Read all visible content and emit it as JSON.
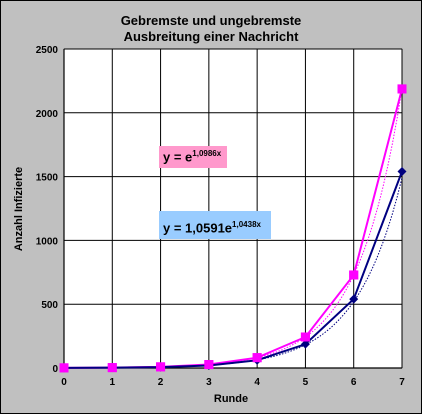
{
  "chart_data": {
    "type": "line",
    "title_lines": [
      "Gebremste und ungebremste",
      "Ausbreitung einer Nachricht"
    ],
    "xlabel": "Runde",
    "ylabel": "Anzahl Infizierte",
    "x": [
      0,
      1,
      2,
      3,
      4,
      5,
      6,
      7
    ],
    "xlim": [
      0,
      7
    ],
    "ylim": [
      0,
      2500
    ],
    "y_ticks": [
      0,
      500,
      1000,
      1500,
      2000,
      2500
    ],
    "x_ticks": [
      0,
      1,
      2,
      3,
      4,
      5,
      6,
      7
    ],
    "grid": true,
    "series": [
      {
        "values": [
          1,
          3,
          9,
          27,
          81,
          243,
          729,
          2187
        ],
        "color": "#ff00ff",
        "marker": "square",
        "trendline": "exponential"
      },
      {
        "values": [
          1,
          3,
          7,
          20,
          61,
          187,
          540,
          1540
        ],
        "color": "#000080",
        "marker": "diamond",
        "trendline": "exponential"
      }
    ],
    "annotations": {
      "eq1_base": "y = e",
      "eq1_exp": "1,0986x",
      "eq2_base": "y = 1,0591e",
      "eq2_exp": "1,0438x"
    },
    "annotation_colors": {
      "eq1_bg": "#ff99cc",
      "eq2_bg": "#99ccff"
    },
    "plot_bg": "#ffffff",
    "frame_bg": "#c0c0c0"
  }
}
